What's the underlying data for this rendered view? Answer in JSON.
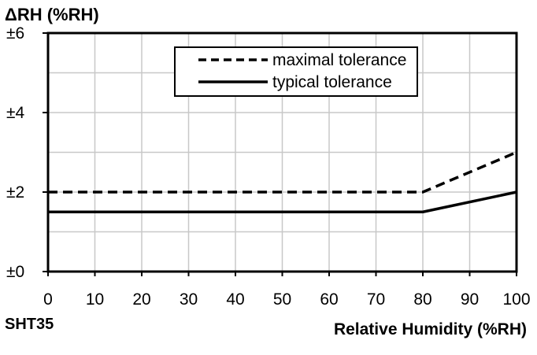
{
  "chart_data": {
    "type": "line",
    "title": "",
    "ylabel": "ΔRH (%RH)",
    "xlabel": "Relative Humidity (%RH)",
    "corner_label": "SHT35",
    "xlim": [
      0,
      100
    ],
    "ylim": [
      0,
      6
    ],
    "x_ticks": [
      0,
      10,
      20,
      30,
      40,
      50,
      60,
      70,
      80,
      90,
      100
    ],
    "x_tick_labels": [
      "0",
      "10",
      "20",
      "30",
      "40",
      "50",
      "60",
      "70",
      "80",
      "90",
      "100"
    ],
    "y_ticks": [
      0,
      2,
      4,
      6
    ],
    "y_tick_labels": [
      "±0",
      "±2",
      "±4",
      "±6"
    ],
    "grid": true,
    "legend_position": "top-right",
    "series": [
      {
        "name": "maximal tolerance",
        "style": "dashed",
        "x": [
          0,
          80,
          100
        ],
        "y": [
          2,
          2,
          3
        ]
      },
      {
        "name": "typical tolerance",
        "style": "solid",
        "x": [
          0,
          80,
          100
        ],
        "y": [
          1.5,
          1.5,
          2
        ]
      }
    ],
    "colors": {
      "line": "#000000",
      "grid": "#c8c8c8",
      "frame": "#000000"
    }
  }
}
